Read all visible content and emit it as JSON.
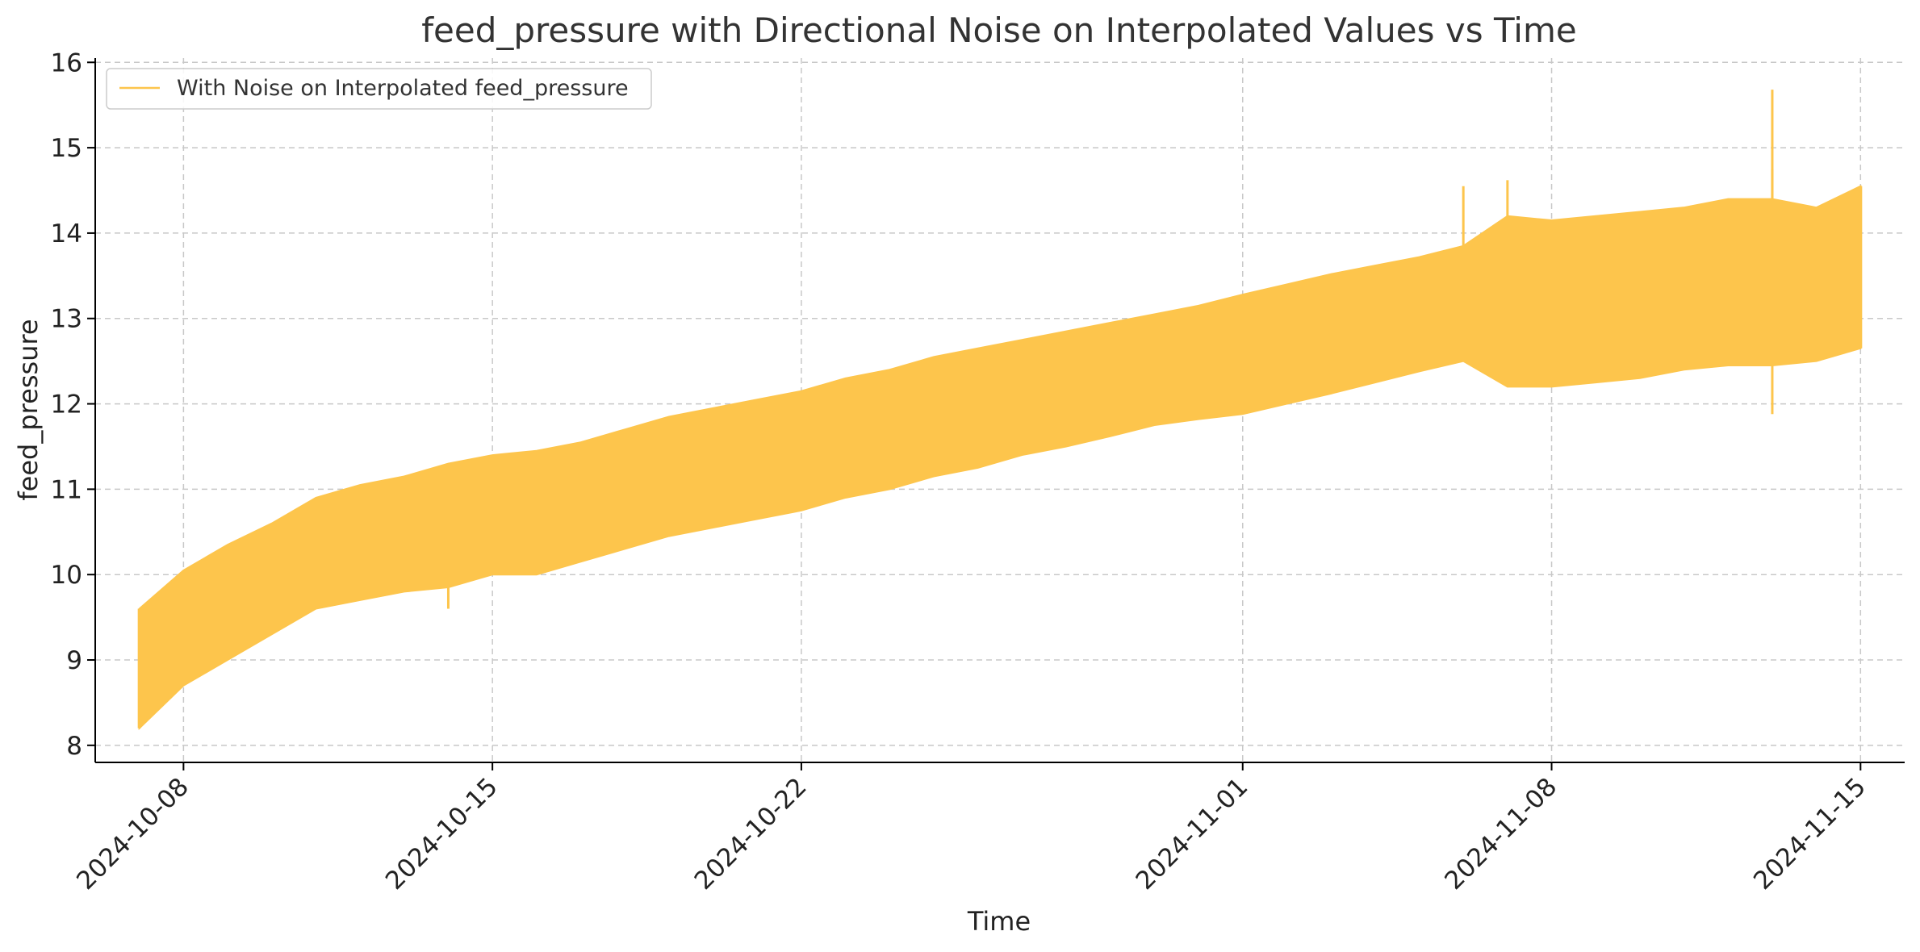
{
  "chart_data": {
    "type": "line",
    "title": "feed_pressure with Directional Noise on Interpolated Values vs Time",
    "xlabel": "Time",
    "ylabel": "feed_pressure",
    "xlim": [
      "2024-10-06",
      "2024-11-16"
    ],
    "ylim": [
      7.8,
      16.05
    ],
    "x_ticks": [
      "2024-10-08",
      "2024-10-15",
      "2024-10-22",
      "2024-11-01",
      "2024-11-08",
      "2024-11-15"
    ],
    "y_ticks": [
      8,
      9,
      10,
      11,
      12,
      13,
      14,
      15,
      16
    ],
    "grid": true,
    "legend": {
      "position": "top-left"
    },
    "series": [
      {
        "name": "With Noise on Interpolated feed_pressure",
        "color": "#FDC54C",
        "x": [
          "2024-10-07",
          "2024-10-08",
          "2024-10-09",
          "2024-10-10",
          "2024-10-11",
          "2024-10-12",
          "2024-10-13",
          "2024-10-14",
          "2024-10-15",
          "2024-10-16",
          "2024-10-17",
          "2024-10-18",
          "2024-10-19",
          "2024-10-20",
          "2024-10-21",
          "2024-10-22",
          "2024-10-23",
          "2024-10-24",
          "2024-10-25",
          "2024-10-26",
          "2024-10-27",
          "2024-10-28",
          "2024-10-29",
          "2024-10-30",
          "2024-10-31",
          "2024-11-01",
          "2024-11-02",
          "2024-11-03",
          "2024-11-04",
          "2024-11-05",
          "2024-11-06",
          "2024-11-07",
          "2024-11-08",
          "2024-11-09",
          "2024-11-10",
          "2024-11-11",
          "2024-11-12",
          "2024-11-13",
          "2024-11-14",
          "2024-11-15"
        ],
        "upper": [
          9.6,
          10.05,
          10.35,
          10.6,
          10.9,
          11.05,
          11.15,
          11.3,
          11.4,
          11.45,
          11.55,
          11.7,
          11.85,
          11.95,
          12.05,
          12.15,
          12.3,
          12.4,
          12.55,
          12.65,
          12.75,
          12.85,
          12.95,
          13.05,
          13.15,
          13.28,
          13.4,
          13.52,
          13.62,
          13.72,
          13.85,
          14.2,
          14.15,
          14.2,
          14.25,
          14.3,
          14.4,
          14.4,
          14.3,
          14.55
        ],
        "lower": [
          8.2,
          8.7,
          9.0,
          9.3,
          9.6,
          9.7,
          9.8,
          9.85,
          10.0,
          10.0,
          10.15,
          10.3,
          10.45,
          10.55,
          10.65,
          10.75,
          10.9,
          11.0,
          11.15,
          11.25,
          11.4,
          11.5,
          11.62,
          11.75,
          11.82,
          11.88,
          12.0,
          12.12,
          12.25,
          12.38,
          12.5,
          12.2,
          12.2,
          12.25,
          12.3,
          12.4,
          12.45,
          12.45,
          12.5,
          12.65
        ],
        "spikes": [
          {
            "x": "2024-11-06",
            "y": 14.55
          },
          {
            "x": "2024-11-07",
            "y": 14.62
          },
          {
            "x": "2024-11-13",
            "y": 14.75
          },
          {
            "x": "2024-11-13",
            "y": 11.88
          },
          {
            "x": "2024-11-13",
            "y": 15.68
          },
          {
            "x": "2024-10-14",
            "y": 9.6
          },
          {
            "x": "2024-10-06",
            "y": 8.17
          }
        ]
      }
    ]
  }
}
